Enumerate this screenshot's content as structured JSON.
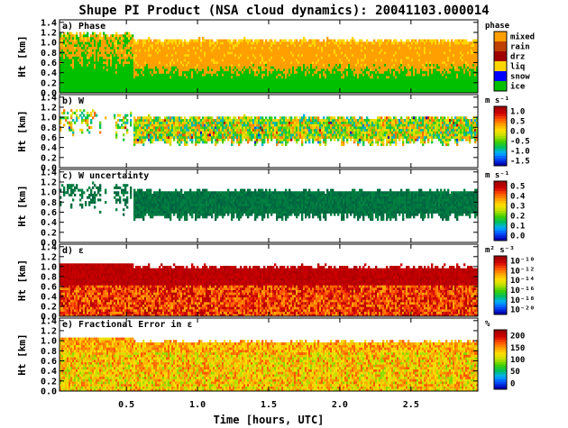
{
  "title": "Shupe PI Product (NSA cloud dynamics): 20041103.000014",
  "xlabel": "Time [hours, UTC]",
  "x_ticks": [
    "0.5",
    "1.0",
    "1.5",
    "2.0",
    "2.5"
  ],
  "chart_data": [
    {
      "type": "heatmap",
      "panel": "a) Phase",
      "ylabel": "Ht [km]",
      "xlim": [
        0.03,
        2.97
      ],
      "ylim": [
        0.0,
        1.45
      ],
      "y_ticks": [
        "0.0",
        "0.2",
        "0.4",
        "0.6",
        "0.8",
        "1.0",
        "1.2",
        "1.4"
      ],
      "colorbar_title": "phase",
      "colorbar_labels": [
        "mixed",
        "rain",
        "drz",
        "liq",
        "snow",
        "ice"
      ],
      "colorbar_colors": [
        "#ffa000",
        "#c04000",
        "#a00000",
        "#ffd700",
        "#0000ff",
        "#00c000"
      ]
    },
    {
      "type": "heatmap",
      "panel": "b) W",
      "ylabel": "Ht [km]",
      "ylim": [
        0.0,
        1.45
      ],
      "y_ticks": [
        "0.0",
        "0.2",
        "0.4",
        "0.6",
        "0.8",
        "1.0",
        "1.2",
        "1.4"
      ],
      "colorbar_title": "m s⁻¹",
      "colorbar_labels": [
        "1.0",
        "0.5",
        "0.0",
        "-0.5",
        "-1.0",
        "-1.5"
      ]
    },
    {
      "type": "heatmap",
      "panel": "c) W uncertainty",
      "ylabel": "Ht [km]",
      "ylim": [
        0.0,
        1.45
      ],
      "y_ticks": [
        "0.0",
        "0.2",
        "0.4",
        "0.6",
        "0.8",
        "1.0",
        "1.2",
        "1.4"
      ],
      "colorbar_title": "m s⁻¹",
      "colorbar_labels": [
        "0.5",
        "0.4",
        "0.3",
        "0.2",
        "0.1",
        "0.0"
      ]
    },
    {
      "type": "heatmap",
      "panel": "d) ε",
      "ylabel": "Ht [km]",
      "ylim": [
        0.0,
        1.45
      ],
      "y_ticks": [
        "0.0",
        "0.2",
        "0.4",
        "0.6",
        "0.8",
        "1.0",
        "1.2",
        "1.4"
      ],
      "colorbar_title": "m² s⁻³",
      "colorbar_labels": [
        "10⁻¹⁰",
        "10⁻¹²",
        "10⁻¹⁴",
        "10⁻¹⁶",
        "10⁻¹⁸",
        "10⁻²⁰"
      ]
    },
    {
      "type": "heatmap",
      "panel": "e) Fractional Error in ε",
      "ylabel": "Ht [km]",
      "ylim": [
        0.0,
        1.45
      ],
      "y_ticks": [
        "0.0",
        "0.2",
        "0.4",
        "0.6",
        "0.8",
        "1.0",
        "1.2",
        "1.4"
      ],
      "colorbar_title": "%",
      "colorbar_labels": [
        "200",
        "150",
        "100",
        "50",
        "0"
      ]
    }
  ]
}
